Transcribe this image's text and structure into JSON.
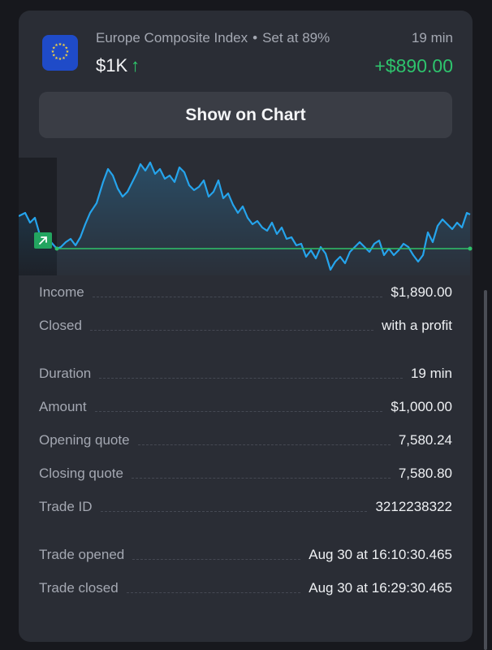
{
  "trade": {
    "asset_name": "Europe Composite Index",
    "separator": "•",
    "payout_text": "Set at 89%",
    "amount": "$1K",
    "direction_icon": "↑",
    "duration": "19 min",
    "profit": "+$890.00"
  },
  "buttons": {
    "show_on_chart": "Show on Chart"
  },
  "chart_data": {
    "type": "line",
    "strike_level_fraction": 0.0,
    "series_color": "#25a4ec",
    "strike_line_color": "#2fc26a",
    "entry_marker_icon": "arrow-up-right-icon"
  },
  "details": [
    {
      "label": "Income",
      "value": "$1,890.00"
    },
    {
      "label": "Closed",
      "value": "with a profit"
    },
    {
      "label": "Duration",
      "value": "19 min"
    },
    {
      "label": "Amount",
      "value": "$1,000.00"
    },
    {
      "label": "Opening quote",
      "value": "7,580.24"
    },
    {
      "label": "Closing quote",
      "value": "7,580.80"
    },
    {
      "label": "Trade ID",
      "value": "3212238322"
    },
    {
      "label": "Trade opened",
      "value": "Aug 30 at 16:10:30.465"
    },
    {
      "label": "Trade closed",
      "value": "Aug 30 at 16:29:30.465"
    }
  ],
  "colors": {
    "background": "#17181d",
    "card": "#2a2d35",
    "profit_green": "#2ec46d",
    "muted_text": "#a4a8b2"
  }
}
